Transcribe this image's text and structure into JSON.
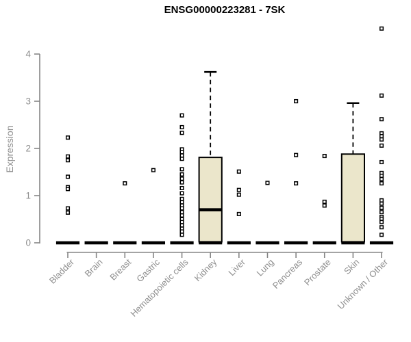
{
  "chart_data": {
    "type": "boxplot",
    "title": "ENSG00000223281 - 7SK",
    "ylabel": "Expression",
    "xlabel": "",
    "ylim": [
      0,
      4
    ],
    "yticks": [
      0,
      1,
      2,
      3,
      4
    ],
    "grid": false,
    "legend": false,
    "colors": {
      "box_fill": "#ebe6cb",
      "box_stroke": "#000000",
      "axis": "#858585",
      "tick_label": "#8e8e8e",
      "point": "#000000",
      "background": "#ffffff"
    },
    "categories": [
      "Bladder",
      "Brain",
      "Breast",
      "Gastric",
      "Hematopoietic cells",
      "Kidney",
      "Liver",
      "Lung",
      "Pancreas",
      "Prostate",
      "Skin",
      "Unknown / Other"
    ],
    "series": [
      {
        "category": "Bladder",
        "has_box": false,
        "median": 0,
        "outliers": [
          2.23,
          1.83,
          1.75,
          1.4,
          1.18,
          1.14,
          0.73,
          0.64
        ]
      },
      {
        "category": "Brain",
        "has_box": false,
        "median": 0,
        "outliers": []
      },
      {
        "category": "Breast",
        "has_box": false,
        "median": 0,
        "outliers": [
          1.26
        ]
      },
      {
        "category": "Gastric",
        "has_box": false,
        "median": 0,
        "outliers": [
          1.54
        ]
      },
      {
        "category": "Hematopoietic cells",
        "has_box": false,
        "median": 0,
        "outliers": [
          2.7,
          2.45,
          2.33,
          1.98,
          1.92,
          1.85,
          1.78,
          1.56,
          1.45,
          1.36,
          1.28,
          1.16,
          1.05,
          0.93,
          0.86,
          0.79,
          0.73,
          0.65,
          0.58,
          0.5,
          0.44,
          0.37,
          0.3,
          0.24,
          0.17
        ]
      },
      {
        "category": "Kidney",
        "has_box": true,
        "q1": 0,
        "median": 0.7,
        "q3": 1.81,
        "whisker_high": 3.62,
        "whisker_low": 0,
        "outliers": []
      },
      {
        "category": "Liver",
        "has_box": false,
        "median": 0,
        "outliers": [
          1.51,
          1.12,
          1.02,
          0.61
        ]
      },
      {
        "category": "Lung",
        "has_box": false,
        "median": 0,
        "outliers": [
          1.27
        ]
      },
      {
        "category": "Pancreas",
        "has_box": false,
        "median": 0,
        "outliers": [
          3.0,
          1.86,
          1.26
        ]
      },
      {
        "category": "Prostate",
        "has_box": false,
        "median": 0,
        "outliers": [
          1.84,
          0.87,
          0.79
        ]
      },
      {
        "category": "Skin",
        "has_box": true,
        "q1": 0,
        "median": 0,
        "q3": 1.88,
        "whisker_high": 2.96,
        "whisker_low": 0,
        "outliers": []
      },
      {
        "category": "Unknown / Other",
        "has_box": false,
        "median": 0,
        "outliers": [
          4.54,
          3.12,
          2.62,
          2.32,
          2.26,
          2.19,
          2.06,
          1.71,
          1.48,
          1.42,
          1.35,
          1.26,
          0.9,
          0.83,
          0.74,
          0.65,
          0.55,
          0.51,
          0.44,
          0.33,
          0.17
        ]
      }
    ]
  }
}
